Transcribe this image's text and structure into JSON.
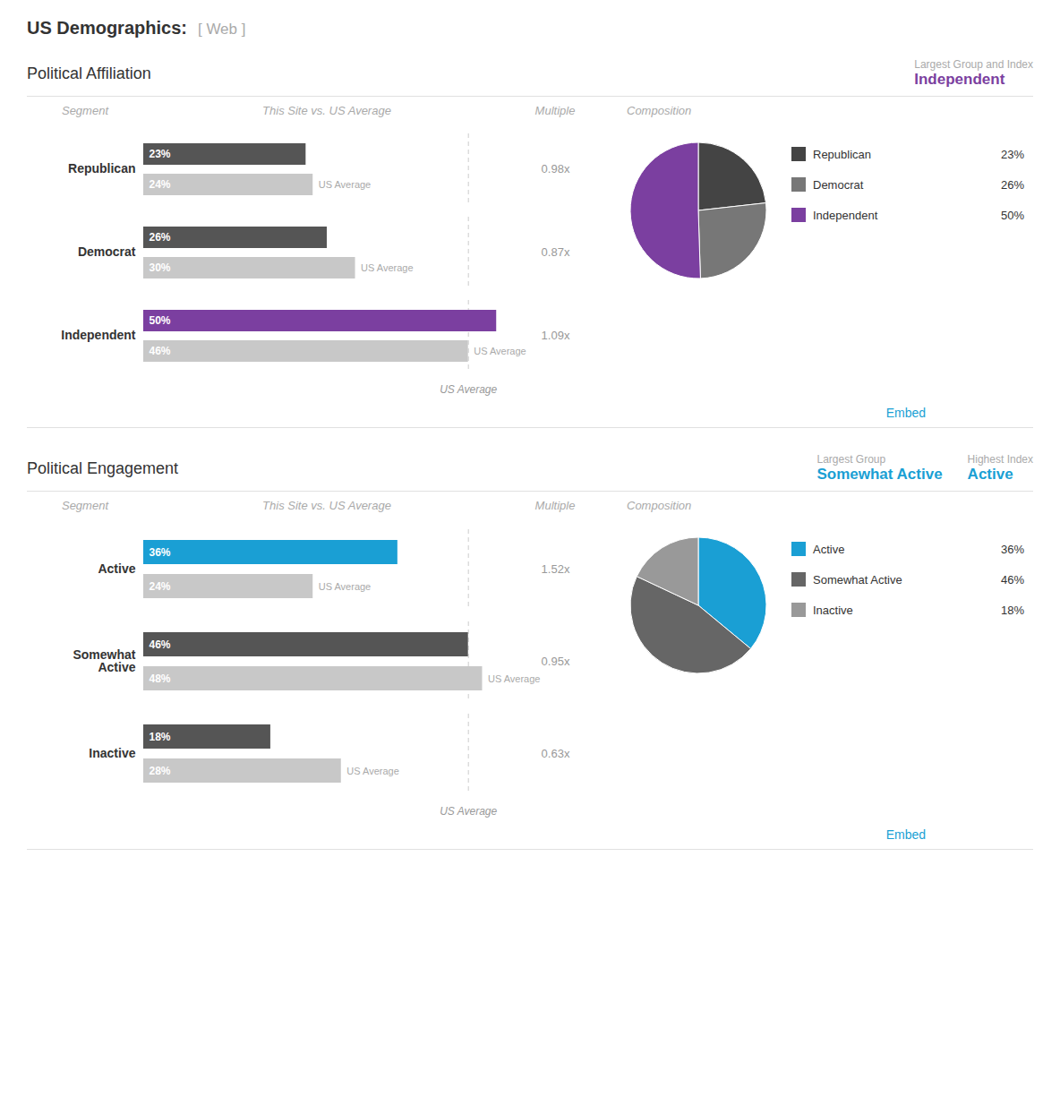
{
  "title": "US Demographics:",
  "subtitle": "[ Web ]",
  "chart_data": [
    {
      "type": "bar",
      "orientation": "horizontal",
      "title": "Political Affiliation",
      "highlights": [
        {
          "label": "Largest Group and Index",
          "value": "Independent",
          "color": "#7B3FA0"
        }
      ],
      "headers": [
        "Segment",
        "This Site vs. US Average",
        "Multiple"
      ],
      "categories": [
        "Republican",
        "Democrat",
        "Independent"
      ],
      "series": [
        {
          "colors": [
            "#555555",
            "#555555",
            "#7B3FA0"
          ],
          "values": [
            23,
            26,
            50
          ],
          "value_labels": [
            "23%",
            "26%",
            "50%"
          ]
        },
        {
          "name": "US Average",
          "color": "#c8c8c8",
          "values": [
            24,
            30,
            46
          ],
          "value_labels": [
            "24%",
            "30%",
            "46%"
          ]
        }
      ],
      "multiples": {
        "values": [
          0.98,
          0.87,
          1.09
        ],
        "labels": [
          "0.98x",
          "0.87x",
          "1.09x"
        ]
      },
      "annotations": [
        {
          "x": 46,
          "text": "US Average"
        }
      ],
      "xlim": [
        0,
        52
      ],
      "tick_labels": false,
      "data_labels": true,
      "caption": "Embed"
    },
    {
      "type": "pie",
      "title": "Composition",
      "categories": [
        "Republican",
        "Democrat",
        "Independent"
      ],
      "values": [
        23,
        26,
        50
      ],
      "value_labels": [
        "23%",
        "26%",
        "50%"
      ],
      "colors": [
        "#444444",
        "#777777",
        "#7B3FA0"
      ],
      "legend": "right"
    },
    {
      "type": "bar",
      "orientation": "horizontal",
      "title": "Political Engagement",
      "highlights": [
        {
          "label": "Largest Group",
          "value": "Somewhat Active",
          "color": "#1a9fd4"
        },
        {
          "label": "Highest Index",
          "value": "Active",
          "color": "#1a9fd4"
        }
      ],
      "headers": [
        "Segment",
        "This Site vs. US Average",
        "Multiple"
      ],
      "categories": [
        "Active",
        "Somewhat\nActive",
        "Inactive"
      ],
      "series": [
        {
          "colors": [
            "#1a9fd4",
            "#555555",
            "#555555"
          ],
          "values": [
            36,
            46,
            18
          ],
          "value_labels": [
            "36%",
            "46%",
            "18%"
          ]
        },
        {
          "name": "US Average",
          "color": "#c8c8c8",
          "values": [
            24,
            48,
            28
          ],
          "value_labels": [
            "24%",
            "48%",
            "28%"
          ]
        }
      ],
      "multiples": {
        "values": [
          1.52,
          0.95,
          0.63
        ],
        "labels": [
          "1.52x",
          "0.95x",
          "0.63x"
        ]
      },
      "annotations": [
        {
          "x": 46,
          "text": "US Average"
        }
      ],
      "xlim": [
        0,
        52
      ],
      "tick_labels": false,
      "data_labels": true,
      "caption": "Embed"
    },
    {
      "type": "pie",
      "title": "Composition",
      "categories": [
        "Active",
        "Somewhat Active",
        "Inactive"
      ],
      "values": [
        36,
        46,
        18
      ],
      "value_labels": [
        "36%",
        "46%",
        "18%"
      ],
      "colors": [
        "#1a9fd4",
        "#666666",
        "#999999"
      ],
      "legend": "right"
    }
  ]
}
